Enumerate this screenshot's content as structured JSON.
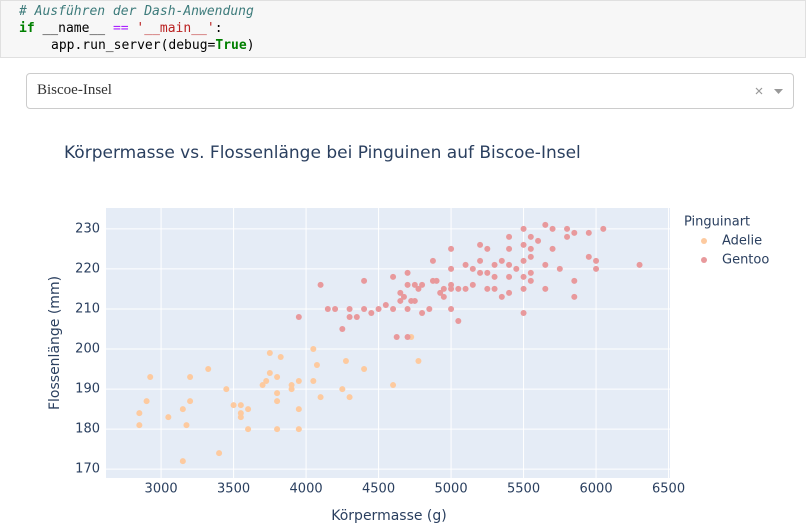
{
  "code": [
    [
      "# Ausführen der Dash-Anwendung"
    ],
    [
      "if",
      "__name__",
      "==",
      "'__main__'",
      ":"
    ],
    [
      "app.run_server(debug=",
      "True",
      ")"
    ]
  ],
  "dropdown": {
    "value": "Biscoe-Insel"
  },
  "chart_data": {
    "type": "scatter",
    "title": "Körpermasse vs. Flossenlänge bei Pinguinen auf Biscoe-Insel",
    "x_label": "Körpermasse (g)",
    "y_label": "Flossenlänge (mm)",
    "legend_title": "Pinguinart",
    "legend": "outside-top-right",
    "grid": true,
    "xlim": [
      2620,
      6510
    ],
    "ylim": [
      167.8,
      235.2
    ],
    "xticks": [
      3000,
      3500,
      4000,
      4500,
      5000,
      5500,
      6000,
      6500
    ],
    "yticks": [
      170,
      180,
      190,
      200,
      210,
      220,
      230
    ],
    "series": [
      {
        "name": "Adelie",
        "color": "#fdca9f",
        "x": [
          2850,
          2850,
          2900,
          2925,
          3050,
          3150,
          3150,
          3175,
          3200,
          3200,
          3325,
          3400,
          3450,
          3500,
          3550,
          3550,
          3550,
          3600,
          3600,
          3700,
          3725,
          3750,
          3750,
          3800,
          3800,
          3800,
          3800,
          3825,
          3900,
          3900,
          3950,
          3950,
          3950,
          4050,
          4050,
          4075,
          4100,
          4250,
          4275,
          4300,
          4400,
          4600,
          4725,
          4775
        ],
        "values": [
          184,
          181,
          187,
          193,
          183,
          172,
          185,
          181,
          187,
          193,
          195,
          174,
          190,
          186,
          186,
          184,
          183,
          180,
          185,
          191,
          192,
          194,
          199,
          193,
          187,
          189,
          180,
          198,
          190,
          191,
          185,
          192,
          180,
          200,
          192,
          196,
          188,
          190,
          197,
          188,
          195,
          191,
          203,
          197
        ]
      },
      {
        "name": "Gentoo",
        "color": "#e8999c",
        "x": [
          3950,
          4100,
          4150,
          4200,
          4250,
          4300,
          4300,
          4350,
          4400,
          4400,
          4450,
          4500,
          4550,
          4600,
          4600,
          4625,
          4650,
          4650,
          4675,
          4700,
          4700,
          4700,
          4700,
          4725,
          4750,
          4750,
          4775,
          4800,
          4800,
          4850,
          4875,
          4875,
          4900,
          4925,
          4950,
          4950,
          5000,
          5000,
          5000,
          5000,
          5000,
          5050,
          5050,
          5100,
          5100,
          5150,
          5150,
          5200,
          5200,
          5200,
          5250,
          5250,
          5250,
          5300,
          5300,
          5300,
          5350,
          5350,
          5400,
          5400,
          5400,
          5400,
          5400,
          5450,
          5500,
          5500,
          5500,
          5500,
          5500,
          5500,
          5550,
          5550,
          5550,
          5550,
          5550,
          5600,
          5650,
          5650,
          5650,
          5700,
          5700,
          5750,
          5800,
          5800,
          5850,
          5850,
          5850,
          5950,
          5950,
          6000,
          6000,
          6050,
          6300
        ],
        "values": [
          208,
          216,
          210,
          210,
          205,
          210,
          208,
          208,
          217,
          210,
          209,
          210,
          211,
          218,
          210,
          203,
          214,
          212,
          213,
          219,
          216,
          210,
          203,
          212,
          216,
          212,
          215,
          216,
          209,
          210,
          222,
          217,
          217,
          214,
          215,
          213,
          225,
          220,
          216,
          215,
          210,
          207,
          215,
          221,
          215,
          220,
          216,
          226,
          222,
          219,
          225,
          219,
          215,
          221,
          218,
          215,
          222,
          213,
          228,
          225,
          221,
          218,
          214,
          220,
          230,
          226,
          222,
          218,
          215,
          209,
          228,
          225,
          223,
          219,
          217,
          227,
          231,
          221,
          215,
          230,
          225,
          220,
          230,
          228,
          229,
          217,
          213,
          229,
          223,
          222,
          220,
          230,
          221
        ]
      }
    ]
  }
}
